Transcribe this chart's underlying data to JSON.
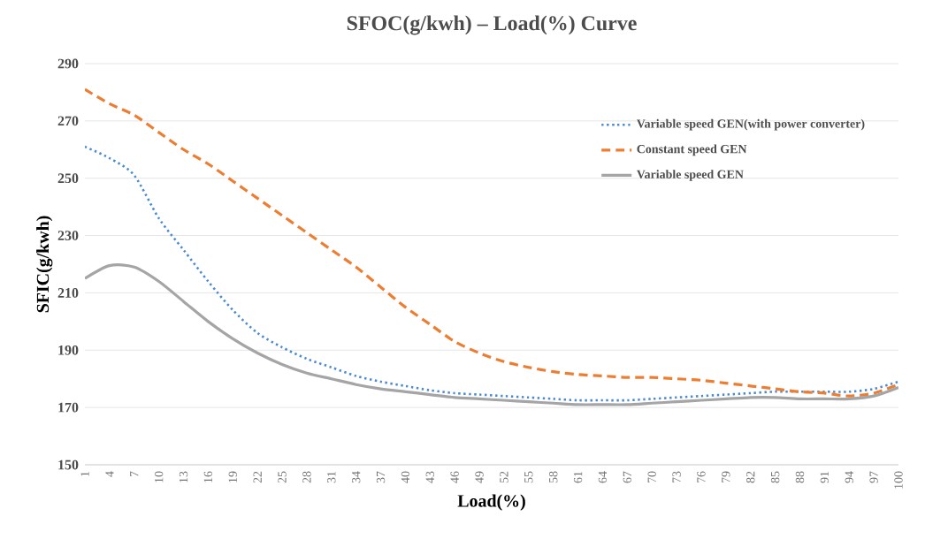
{
  "chart_data": {
    "type": "line",
    "title": "SFOC(g/kwh) – Load(%) Curve",
    "xlabel": "Load(%)",
    "ylabel": "SFIC(g/kwh)",
    "x": [
      1,
      4,
      7,
      10,
      13,
      16,
      19,
      22,
      25,
      28,
      31,
      34,
      37,
      40,
      43,
      46,
      49,
      52,
      55,
      58,
      61,
      64,
      67,
      70,
      73,
      76,
      79,
      82,
      85,
      88,
      91,
      94,
      97,
      100
    ],
    "xlim": [
      1,
      100
    ],
    "xticks": [
      1,
      4,
      7,
      10,
      13,
      16,
      19,
      22,
      25,
      28,
      31,
      34,
      37,
      40,
      43,
      46,
      49,
      52,
      55,
      58,
      61,
      64,
      67,
      70,
      73,
      76,
      79,
      82,
      85,
      88,
      91,
      94,
      97,
      100
    ],
    "ylim": [
      150,
      290
    ],
    "yticks": [
      150,
      170,
      190,
      210,
      230,
      250,
      270,
      290
    ],
    "grid": "y",
    "legend": "top right",
    "marker": "none",
    "series": [
      {
        "name": "Variable speed GEN(with power converter)",
        "color": "#4a8ad0",
        "line_style": "dotted",
        "values": [
          261,
          257,
          251,
          236,
          225,
          214,
          204,
          196,
          191,
          187,
          184,
          181,
          179,
          177.5,
          176,
          175,
          174.5,
          174,
          173.5,
          173,
          172.5,
          172.5,
          172.5,
          173,
          173.5,
          174,
          174.5,
          175,
          175.5,
          175.5,
          175.5,
          175.5,
          176.5,
          179
        ]
      },
      {
        "name": "Constant speed GEN",
        "color": "#ed7d31",
        "line_style": "dashed",
        "values": [
          281,
          276,
          272,
          266,
          260,
          255,
          249,
          243,
          237,
          231,
          225,
          219,
          212,
          205,
          199,
          193,
          189,
          186,
          184,
          182.5,
          181.5,
          181,
          180.5,
          180.5,
          180,
          179.5,
          178.5,
          177.5,
          176.5,
          175.5,
          175,
          174,
          175,
          178
        ]
      },
      {
        "name": "Variable speed GEN",
        "color": "#a5a5a5",
        "line_style": "solid",
        "values": [
          215,
          219.5,
          219,
          214,
          207,
          200,
          194,
          189,
          185,
          182,
          180,
          178,
          176.5,
          175.5,
          174.5,
          173.5,
          173,
          172.5,
          172,
          171.5,
          171,
          171,
          171,
          171.5,
          172,
          172.5,
          173,
          173.5,
          173.5,
          173,
          173,
          173,
          174,
          177
        ]
      }
    ]
  }
}
